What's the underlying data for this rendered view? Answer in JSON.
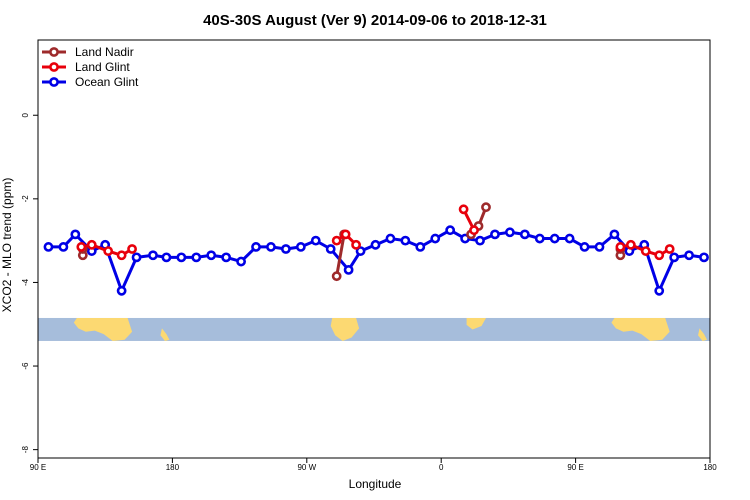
{
  "chart_data": {
    "type": "line",
    "title": "40S-30S August (Ver 9)   2014-09-06 to 2018-12-31",
    "xlabel": "Longitude",
    "ylabel": "XCO2 - MLO trend (ppm)",
    "xlim": [
      0,
      450
    ],
    "ylim": [
      -8.2,
      1.8
    ],
    "x_ticks": [
      {
        "value": 0,
        "label": "90 E"
      },
      {
        "value": 90,
        "label": "180"
      },
      {
        "value": 180,
        "label": "90 W"
      },
      {
        "value": 270,
        "label": "0"
      },
      {
        "value": 360,
        "label": "90 E"
      },
      {
        "value": 450,
        "label": "180"
      }
    ],
    "y_ticks": [
      {
        "value": 0,
        "label": "0"
      },
      {
        "value": -2,
        "label": "-2"
      },
      {
        "value": -4,
        "label": "-4"
      },
      {
        "value": -6,
        "label": "-6"
      },
      {
        "value": -8,
        "label": "-8"
      }
    ],
    "map_band": {
      "y_top": -4.85,
      "y_bottom": -5.4,
      "ocean_color": "#a6bddb",
      "land_color": "#fcd972"
    },
    "series": [
      {
        "name": "Land Nadir",
        "color": "#9e2a2b",
        "segments": [
          [
            [
              30,
              -3.35
            ],
            [
              30,
              -3.2
            ]
          ],
          [
            [
              200,
              -3.85
            ],
            [
              205,
              -2.85
            ]
          ],
          [
            [
              290,
              -2.85
            ],
            [
              295,
              -2.65
            ],
            [
              300,
              -2.2
            ]
          ],
          [
            [
              390,
              -3.35
            ],
            [
              390,
              -3.2
            ]
          ]
        ]
      },
      {
        "name": "Land Glint",
        "color": "#e8000b",
        "segments": [
          [
            [
              29,
              -3.15
            ],
            [
              36,
              -3.1
            ],
            [
              47,
              -3.25
            ],
            [
              56,
              -3.35
            ],
            [
              63,
              -3.2
            ]
          ],
          [
            [
              200,
              -3.0
            ],
            [
              206,
              -2.85
            ],
            [
              213,
              -3.1
            ]
          ],
          [
            [
              285,
              -2.25
            ],
            [
              292,
              -2.75
            ]
          ],
          [
            [
              390,
              -3.15
            ],
            [
              397,
              -3.1
            ],
            [
              407,
              -3.25
            ],
            [
              416,
              -3.35
            ],
            [
              423,
              -3.2
            ]
          ]
        ]
      },
      {
        "name": "Ocean Glint",
        "color": "#0000e6",
        "segments": [
          [
            [
              7,
              -3.15
            ],
            [
              17,
              -3.15
            ],
            [
              25,
              -2.85
            ],
            [
              36,
              -3.25
            ],
            [
              45,
              -3.1
            ],
            [
              56,
              -4.2
            ],
            [
              66,
              -3.4
            ],
            [
              77,
              -3.35
            ],
            [
              86,
              -3.4
            ],
            [
              96,
              -3.4
            ],
            [
              106,
              -3.4
            ],
            [
              116,
              -3.35
            ],
            [
              126,
              -3.4
            ],
            [
              136,
              -3.5
            ],
            [
              146,
              -3.15
            ],
            [
              156,
              -3.15
            ],
            [
              166,
              -3.2
            ],
            [
              176,
              -3.15
            ],
            [
              186,
              -3.0
            ],
            [
              196,
              -3.2
            ],
            [
              208,
              -3.7
            ],
            [
              216,
              -3.25
            ],
            [
              226,
              -3.1
            ],
            [
              236,
              -2.95
            ],
            [
              246,
              -3.0
            ],
            [
              256,
              -3.15
            ],
            [
              266,
              -2.95
            ],
            [
              276,
              -2.75
            ],
            [
              286,
              -2.95
            ],
            [
              296,
              -3.0
            ],
            [
              306,
              -2.85
            ],
            [
              316,
              -2.8
            ],
            [
              326,
              -2.85
            ],
            [
              336,
              -2.95
            ],
            [
              346,
              -2.95
            ],
            [
              356,
              -2.95
            ],
            [
              366,
              -3.15
            ],
            [
              376,
              -3.15
            ],
            [
              386,
              -2.85
            ],
            [
              396,
              -3.25
            ],
            [
              406,
              -3.1
            ],
            [
              416,
              -4.2
            ],
            [
              426,
              -3.4
            ],
            [
              436,
              -3.35
            ],
            [
              446,
              -3.4
            ]
          ]
        ]
      }
    ],
    "legend": {
      "position": "top-left",
      "entries": [
        "Land Nadir",
        "Land Glint",
        "Ocean Glint"
      ]
    }
  }
}
